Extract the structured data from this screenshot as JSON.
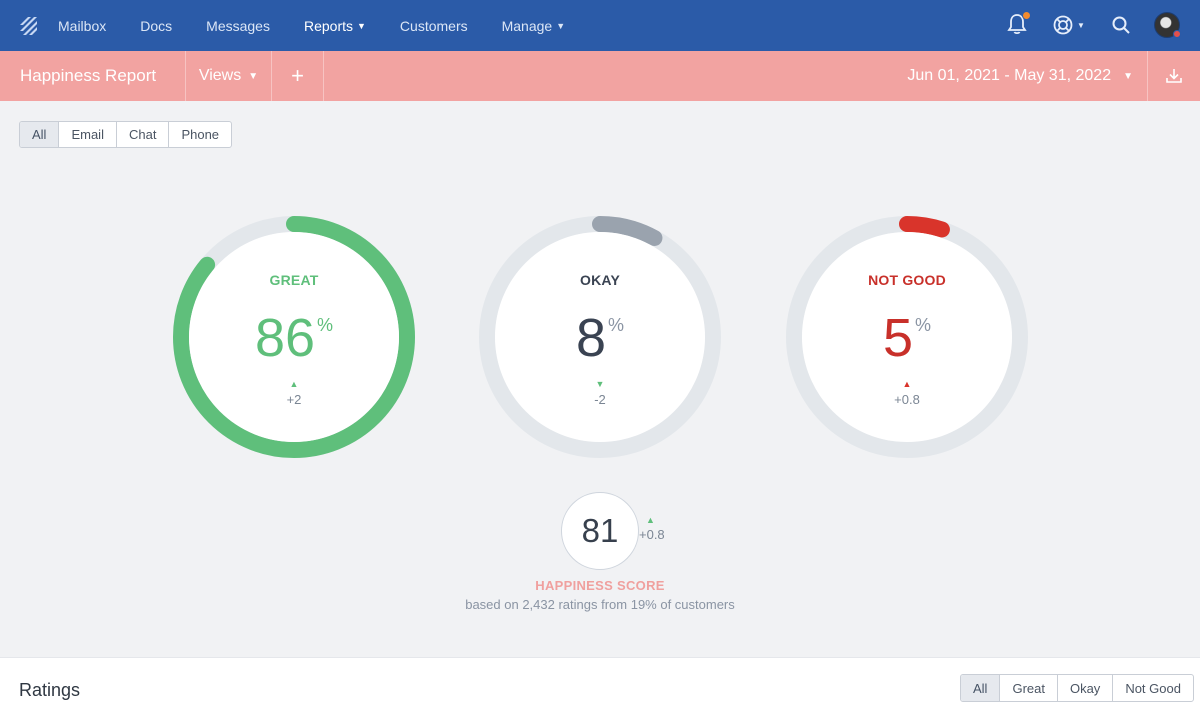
{
  "nav": {
    "items": [
      {
        "label": "Mailbox"
      },
      {
        "label": "Docs"
      },
      {
        "label": "Messages"
      },
      {
        "label": "Reports",
        "dropdown": true,
        "active": true
      },
      {
        "label": "Customers"
      },
      {
        "label": "Manage",
        "dropdown": true
      }
    ],
    "icons": [
      "bell-icon",
      "lifebuoy-icon",
      "search-icon",
      "avatar"
    ]
  },
  "report": {
    "title": "Happiness Report",
    "views_label": "Views",
    "add_label": "+",
    "date_range": "Jun 01, 2021 - May 31, 2022"
  },
  "channel_filter": {
    "options": [
      "All",
      "Email",
      "Chat",
      "Phone"
    ],
    "selected": "All"
  },
  "metrics": {
    "great": {
      "label": "GREAT",
      "value": "86",
      "unit": "%",
      "delta": "+2",
      "trend": "up",
      "percent": 86,
      "color": "#5fbf7b"
    },
    "okay": {
      "label": "OKAY",
      "value": "8",
      "unit": "%",
      "delta": "-2",
      "trend": "down",
      "percent": 8,
      "color": "#9aa3ae"
    },
    "not_good": {
      "label": "NOT GOOD",
      "value": "5",
      "unit": "%",
      "delta": "+0.8",
      "trend": "up",
      "percent": 5,
      "color": "#d9342b"
    }
  },
  "score": {
    "value": "81",
    "delta": "+0.8",
    "label": "HAPPINESS SCORE",
    "subtitle": "based on 2,432 ratings from 19% of customers"
  },
  "ratings": {
    "title": "Ratings",
    "filter": [
      "All",
      "Great",
      "Okay",
      "Not Good"
    ],
    "selected": "All"
  }
}
